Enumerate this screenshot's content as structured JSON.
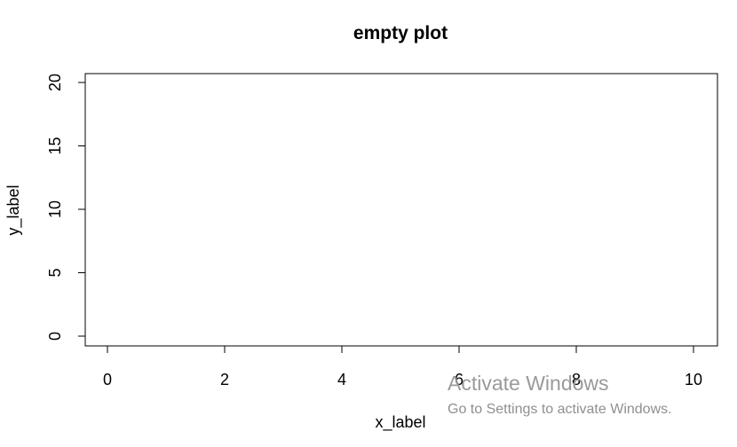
{
  "chart_data": {
    "type": "scatter",
    "title": "empty plot",
    "xlabel": "x_label",
    "ylabel": "y_label",
    "xlim": [
      0,
      10
    ],
    "ylim": [
      0,
      20
    ],
    "x_ticks": [
      0,
      2,
      4,
      6,
      8,
      10
    ],
    "y_ticks": [
      0,
      5,
      10,
      15,
      20
    ],
    "series": [],
    "grid": false
  },
  "watermark": {
    "title": "Activate Windows",
    "subtitle": "Go to Settings to activate Windows."
  }
}
